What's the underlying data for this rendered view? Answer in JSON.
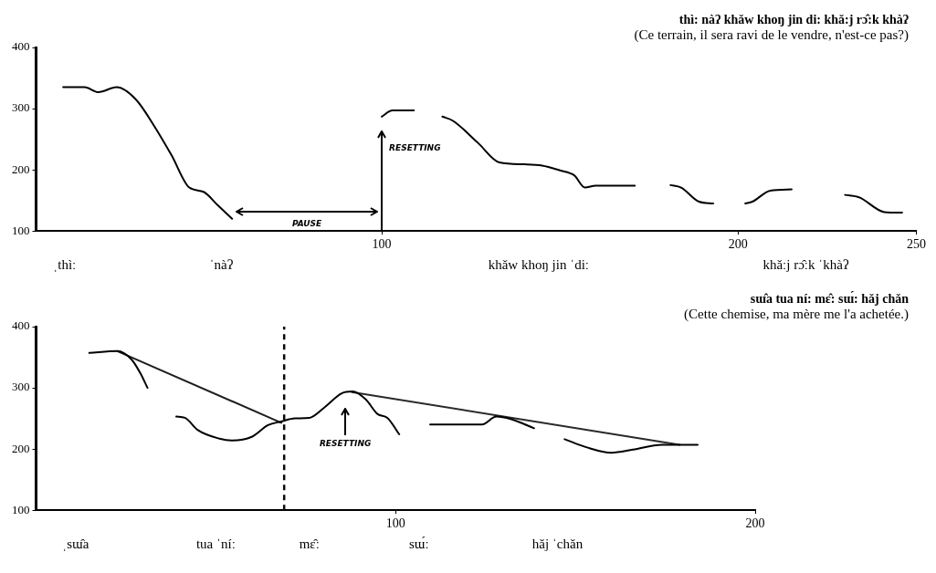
{
  "chart_data": [
    {
      "type": "line",
      "title": "thì: nàʔ khǎw khoŋ jin di: khǎ:j rɔ̂:k khàʔ",
      "subtitle": "(Ce terrain, il sera ravi de le vendre, n'est-ce pas?)",
      "marker": "none",
      "xlim": [
        3,
        250
      ],
      "xticks": [
        100,
        200,
        250
      ],
      "ylim": [
        100,
        400
      ],
      "yticks": [
        100,
        200,
        300,
        400
      ],
      "series": [
        {
          "color": "#000000",
          "x": [
            10.6,
            16.6,
            20.5,
            25.6,
            31,
            36,
            41,
            46,
            50,
            54,
            58,
            79,
            100,
            103,
            109,
            113,
            117,
            120,
            127,
            133,
            140,
            145,
            150,
            154,
            157,
            160,
            171,
            176,
            181,
            184,
            189,
            193,
            197,
            202,
            204,
            209,
            215,
            222,
            230,
            234,
            241,
            246
          ],
          "values": [
            335,
            335,
            327,
            335,
            315,
            273,
            224,
            171,
            164,
            142,
            120,
            null,
            287,
            297,
            297,
            null,
            287,
            280,
            244,
            212,
            209,
            207,
            199,
            191,
            171,
            174,
            174,
            null,
            175,
            171,
            148,
            145,
            null,
            145,
            148,
            166,
            168,
            null,
            159,
            155,
            131,
            130
          ]
        }
      ],
      "annotations": [
        "RESETTING",
        "PAUSE",
        "ˌthìː",
        "ˈnàʔ",
        "khǎw khoŋ jin ˈdiː",
        "khǎːj rɔ̂ːk ˈkhàʔ"
      ]
    },
    {
      "type": "line",
      "title": "sɯ̂a tua ní: mɛ̂: sɯ́: hǎj chǎn",
      "subtitle": "(Cette chemise, ma mère me l'a achetée.)",
      "marker": "none",
      "xlim": [
        0,
        200
      ],
      "xticks": [
        100,
        200
      ],
      "ylim": [
        100,
        400
      ],
      "yticks": [
        100,
        200,
        300,
        400
      ],
      "series": [
        {
          "color": "#000000",
          "x": [
            14.8,
            22.6,
            26.6,
            29,
            31,
            35,
            39,
            41.4,
            45,
            51,
            54.4,
            60,
            64.5,
            68.2,
            72,
            76,
            80,
            85,
            88,
            91.7,
            95,
            97.7,
            101,
            105,
            109.6,
            124,
            128,
            132,
            138.5,
            143,
            147,
            153,
            160,
            166,
            174,
            184
          ],
          "values": [
            357,
            360,
            346,
            324,
            300,
            null,
            253,
            251,
            231,
            217,
            214,
            220,
            239,
            245,
            250,
            251,
            267,
            291,
            294,
            281,
            257,
            251,
            224,
            null,
            240,
            240,
            253,
            249,
            234,
            null,
            216,
            203,
            194,
            199,
            207,
            207
          ]
        },
        {
          "type": "line",
          "color": "#1e1e1e",
          "x": [
            22.6,
            68.2
          ],
          "values": [
            360,
            243
          ]
        },
        {
          "type": "line",
          "color": "#2a2a2a",
          "x": [
            87.8,
            179
          ],
          "values": [
            293,
            207
          ]
        }
      ],
      "ref_lines": [
        {
          "axis": "x",
          "value": 69,
          "color": "#0a0a0a",
          "line_style": "dashed"
        }
      ],
      "annotations": [
        "RESETTING",
        "ˌsɯ̂a",
        "tua ˈníː",
        "mɛ̂ː",
        "sɯ́ː",
        "hǎj ˈchǎn"
      ]
    }
  ]
}
